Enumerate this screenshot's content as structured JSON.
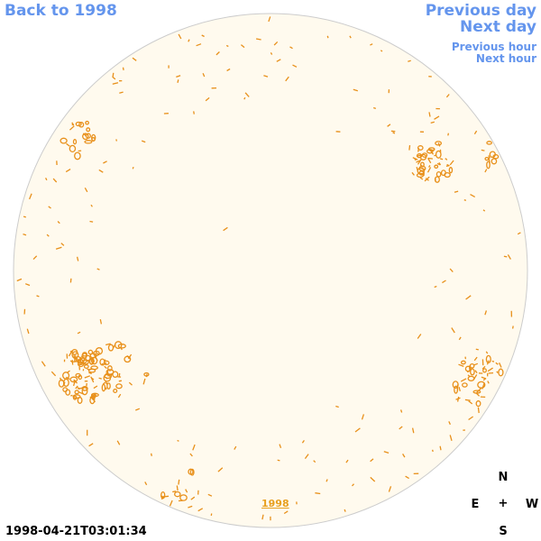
{
  "nav": {
    "back_label": "Back to 1998",
    "prev_day_label": "Previous day",
    "next_day_label": "Next day",
    "prev_hour_label": "Previous hour",
    "next_hour_label": "Next hour"
  },
  "disk": {
    "year_label": "1998"
  },
  "timestamp": "1998-04-21T03:01:34",
  "compass": {
    "north": "N",
    "east": "E",
    "center": "+",
    "west": "W",
    "south": "S"
  },
  "colors": {
    "disk_fill": "#fffaee",
    "disk_edge": "#cccccc",
    "contour": "#e8901a",
    "link": "#6495ed",
    "text": "#000000"
  }
}
